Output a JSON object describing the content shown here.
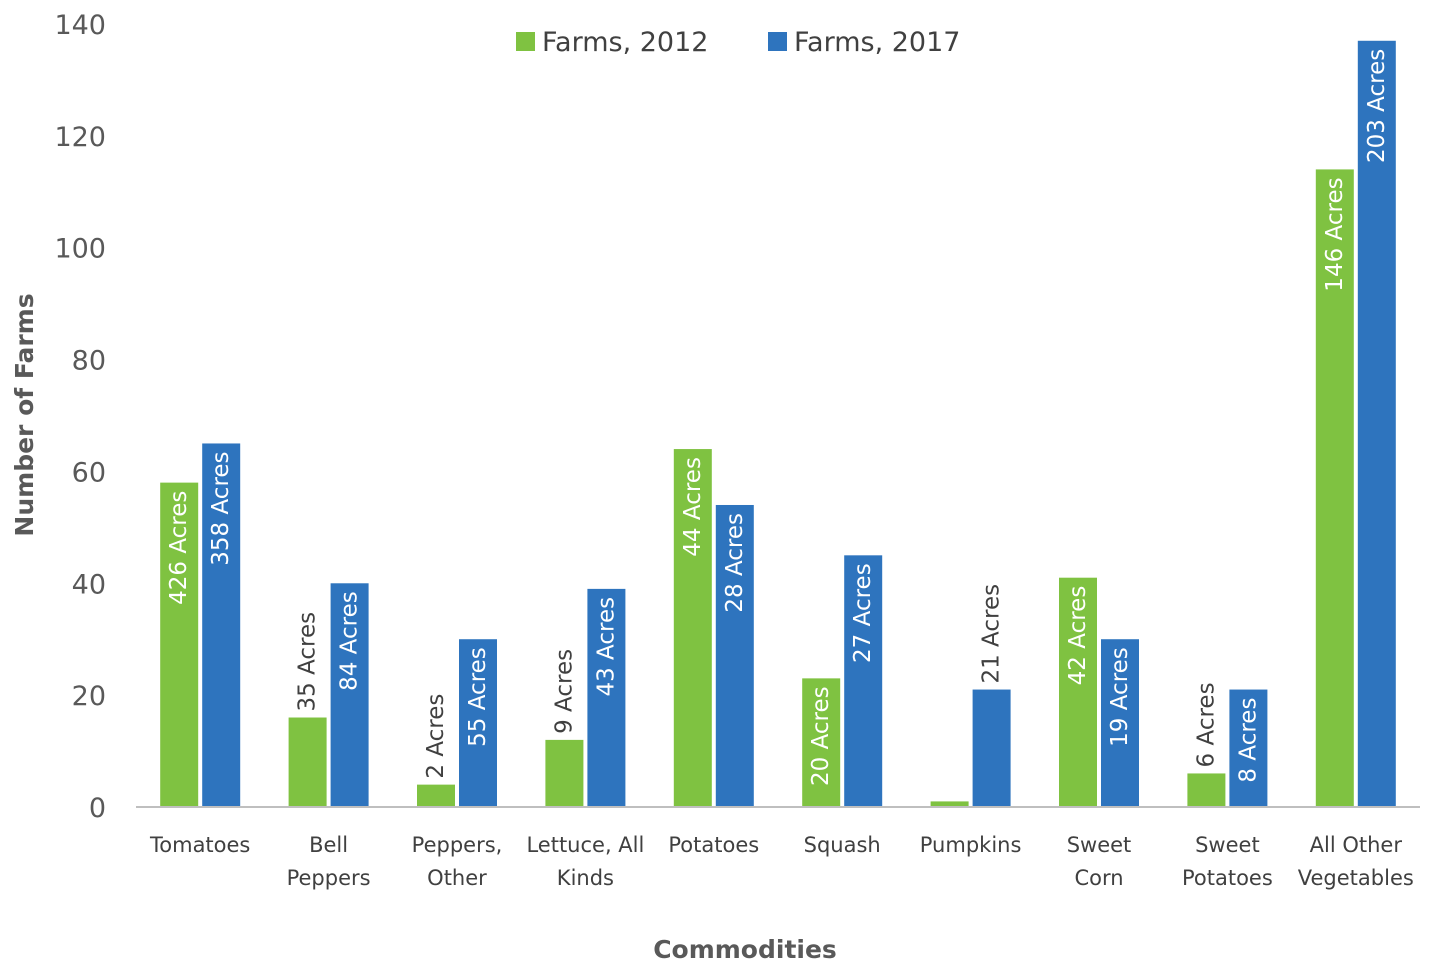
{
  "chart_data": {
    "type": "bar",
    "title": "",
    "xlabel": "Commodities",
    "ylabel": "Number of Farms",
    "ylim": [
      0,
      140
    ],
    "yticks": [
      "0",
      "20",
      "40",
      "60",
      "80",
      "100",
      "120",
      "140"
    ],
    "grid": false,
    "legend_position": "top-center",
    "categories": [
      [
        "Tomatoes"
      ],
      [
        "Bell",
        "Peppers"
      ],
      [
        "Peppers,",
        "Other"
      ],
      [
        "Lettuce, All",
        "Kinds"
      ],
      [
        "Potatoes"
      ],
      [
        "Squash"
      ],
      [
        "Pumpkins"
      ],
      [
        "Sweet",
        "Corn"
      ],
      [
        "Sweet",
        "Potatoes"
      ],
      [
        "All Other",
        "Vegetables"
      ]
    ],
    "series": [
      {
        "name": "Farms, 2012",
        "color": "#7fc241",
        "values": [
          58,
          16,
          4,
          12,
          64,
          23,
          1,
          41,
          6,
          114
        ],
        "labels": [
          "426 Acres",
          "35  Acres",
          "2 Acres",
          "9 Acres",
          "44 Acres",
          "20 Acres",
          "",
          "42 Acres",
          "6 Acres",
          "146 Acres"
        ]
      },
      {
        "name": "Farms, 2017",
        "color": "#2e74be",
        "values": [
          65,
          40,
          30,
          39,
          54,
          45,
          21,
          30,
          21,
          137
        ],
        "labels": [
          "358 Acres",
          "84 Acres",
          "55 Acres",
          "43 Acres",
          "28 Acres",
          "27 Acres",
          "21 Acres",
          "19 Acres",
          "8 Acres",
          "203 Acres"
        ]
      }
    ]
  }
}
